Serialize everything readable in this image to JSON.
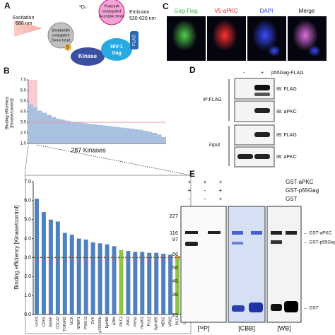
{
  "panel_a": {
    "letter": "A",
    "excitation": [
      "Excitation",
      "680 nm"
    ],
    "singlet_oxygen": "¹O₂",
    "acceptor_bead": [
      "ProteinA",
      "conjugated",
      "Acceptor bead"
    ],
    "emission": [
      "Emission",
      "520-620 nm"
    ],
    "donor_bead": [
      "Streptavidin",
      "conjugated",
      "Donor bead"
    ],
    "biotin": "B",
    "kinase": "Kinase",
    "gag": [
      "HIV-1",
      "Gag"
    ],
    "flag": "FLAG"
  },
  "panel_b": {
    "letter": "B",
    "overview": {
      "type": "bar",
      "ylabel": [
        "Binding efficiency",
        "[Kinase/control]"
      ],
      "xlabel": "287 Kinases",
      "values": [
        4.7,
        4.4,
        4.1,
        3.9,
        3.7,
        3.5,
        3.35,
        3.25,
        3.15,
        3.05,
        3.0,
        2.95,
        2.9,
        2.85,
        2.8,
        2.75,
        2.7,
        2.65,
        2.6,
        2.55,
        2.5,
        2.45,
        2.4,
        2.35,
        2.3,
        2.2,
        2.1,
        2.0,
        1.85,
        1.6
      ],
      "color": "#a9c0e0",
      "threshold": 3.0,
      "threshold_color": "#e79aa6",
      "ylim": [
        1,
        7
      ],
      "yticks": [
        {
          "value": 1,
          "label": "1.0"
        },
        {
          "value": 2,
          "label": "2.0"
        },
        {
          "value": 3,
          "label": "3.0"
        },
        {
          "value": 4,
          "label": "4.0"
        },
        {
          "value": 5,
          "label": "5.0"
        },
        {
          "value": 6,
          "label": "6.0"
        },
        {
          "value": 7,
          "label": "7.0"
        }
      ]
    },
    "detail": {
      "type": "bar",
      "ylabel": "Binding efficiency [Kinase/control]",
      "categories": [
        "ULK4",
        "CDK5",
        "ARAF",
        "CDC42",
        "TGFbR2",
        "GCK",
        "NRBP1",
        "PSKH1",
        "SYK",
        "p70S6Kb",
        "EphB6",
        "p38d",
        "PKCζ",
        "JNK2",
        "PKN2",
        "NuaK1",
        "PLK1",
        "SgK495",
        "NEK2",
        "VRK2",
        "PKCι",
        "LCK"
      ],
      "values": [
        6.1,
        5.4,
        5.0,
        4.9,
        4.3,
        4.2,
        4.0,
        3.95,
        3.8,
        3.75,
        3.7,
        3.6,
        3.4,
        3.35,
        3.3,
        3.3,
        3.25,
        3.25,
        3.2,
        3.15,
        3.1,
        3.05
      ],
      "colors": [
        "#4f81bd",
        "#4f81bd",
        "#4f81bd",
        "#4f81bd",
        "#4f81bd",
        "#4f81bd",
        "#4f81bd",
        "#4f81bd",
        "#4f81bd",
        "#4f81bd",
        "#4f81bd",
        "#4f81bd",
        "#8cc63e",
        "#4f81bd",
        "#4f81bd",
        "#4f81bd",
        "#4f81bd",
        "#4f81bd",
        "#4f81bd",
        "#4f81bd",
        "#8cc63e",
        "#4f81bd"
      ],
      "threshold": 3.0,
      "threshold_color": "#d7263d",
      "ylim": [
        0,
        7
      ],
      "yticks": [
        {
          "value": 0,
          "label": "0.0"
        },
        {
          "value": 1,
          "label": "1.0"
        },
        {
          "value": 2,
          "label": "2.0"
        },
        {
          "value": 3,
          "label": "3.0"
        },
        {
          "value": 4,
          "label": "4.0"
        },
        {
          "value": 5,
          "label": "5.0"
        },
        {
          "value": 6,
          "label": "6.0"
        },
        {
          "value": 7,
          "label": "7.0"
        }
      ]
    }
  },
  "panel_c": {
    "letter": "C",
    "labels": [
      "Gag-Flag",
      "V5-aPKC",
      "DAPI",
      "Merge"
    ]
  },
  "panel_d": {
    "letter": "D",
    "lanes": [
      "-",
      "+"
    ],
    "lane_label": "p55Gag-FLAG",
    "blots": [
      "IB: FLAG",
      "IB: aPKC",
      "IB: FLAG",
      "IB: aPKC"
    ],
    "groups": [
      "IP:FLAG",
      "input"
    ]
  },
  "panel_e": {
    "letter": "E",
    "rows": [
      {
        "label": "GST-aPKC",
        "signs": [
          "+",
          "+",
          "+"
        ]
      },
      {
        "label": "GST-p55Gag",
        "signs": [
          "+",
          "-",
          "+"
        ]
      },
      {
        "label": "GST",
        "signs": [
          "-",
          "-",
          "+"
        ]
      }
    ],
    "markers": [
      "227",
      "116",
      "97",
      "66",
      "56",
      "45",
      "36",
      "29"
    ],
    "gels": [
      "[³²P]",
      "[CBB]",
      "[WB]"
    ],
    "bands": [
      "← GST-aPKC",
      "← GST-p55Gag",
      "← GST"
    ]
  }
}
